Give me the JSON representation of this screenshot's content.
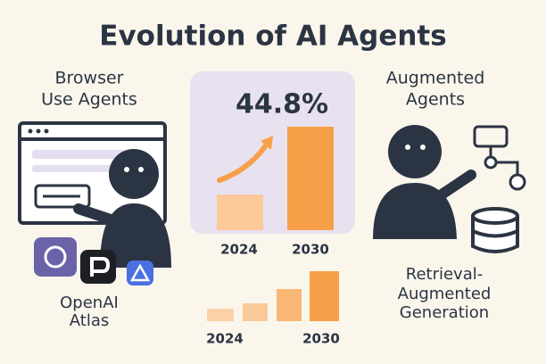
{
  "title": "Evolution of AI Agents",
  "left": {
    "heading": [
      "Browser",
      "Use Agents"
    ],
    "caption": [
      "OpenAI",
      "Atlas"
    ]
  },
  "center": {
    "stat": "44.8%",
    "top_labels": [
      "2024",
      "2030"
    ],
    "bottom_labels": [
      "2024",
      "2030"
    ]
  },
  "right": {
    "heading": [
      "Augmented",
      "Agents"
    ],
    "caption": [
      "Retrieval-",
      "Augmented",
      "Generation"
    ]
  }
}
